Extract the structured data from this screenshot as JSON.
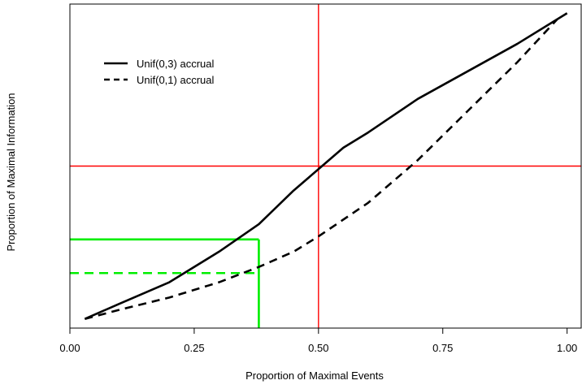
{
  "chart_data": {
    "type": "line",
    "title": "",
    "xlabel": "Proportion of Maximal Events",
    "ylabel": "Proportion of Maximal Information",
    "xlim": [
      0,
      1.03
    ],
    "ylim": [
      -0.03,
      1.03
    ],
    "x_ticks": [
      0,
      0.25,
      0.5,
      0.75,
      1
    ],
    "x_tick_labels": [
      "0.00",
      "0.25",
      "0.50",
      "0.75",
      "1.00"
    ],
    "y_ticks": [],
    "y_tick_labels": [],
    "grid": false,
    "legend_position": "top-left",
    "series": [
      {
        "name": "Unif(0,3) accrual",
        "line_style": "solid",
        "color": "#000000",
        "x": [
          0.03,
          0.1,
          0.2,
          0.3,
          0.38,
          0.45,
          0.5,
          0.55,
          0.6,
          0.7,
          0.8,
          0.9,
          1.0
        ],
        "y": [
          0.0,
          0.05,
          0.12,
          0.22,
          0.31,
          0.42,
          0.49,
          0.56,
          0.61,
          0.72,
          0.81,
          0.9,
          1.0
        ]
      },
      {
        "name": "Unif(0,1) accrual",
        "line_style": "dashed",
        "color": "#000000",
        "x": [
          0.03,
          0.1,
          0.2,
          0.3,
          0.38,
          0.45,
          0.5,
          0.6,
          0.7,
          0.8,
          0.9,
          0.98
        ],
        "y": [
          0.0,
          0.03,
          0.07,
          0.12,
          0.17,
          0.22,
          0.27,
          0.38,
          0.52,
          0.68,
          0.84,
          0.98
        ]
      }
    ],
    "reference_lines": [
      {
        "orientation": "vertical",
        "value": 0.5,
        "color": "#ff0000",
        "style": "solid"
      },
      {
        "orientation": "horizontal",
        "value": 0.5,
        "color": "#ff0000",
        "style": "solid"
      }
    ],
    "highlight_segments": [
      {
        "color": "#00ee00",
        "style": "solid",
        "x1": 0,
        "y1": 0.26,
        "x2": 0.38,
        "y2": 0.26
      },
      {
        "color": "#00ee00",
        "style": "dashed",
        "x1": 0,
        "y1": 0.15,
        "x2": 0.38,
        "y2": 0.15
      },
      {
        "color": "#00ee00",
        "style": "solid",
        "x1": 0.38,
        "y1": -0.03,
        "x2": 0.38,
        "y2": 0.26
      }
    ]
  }
}
